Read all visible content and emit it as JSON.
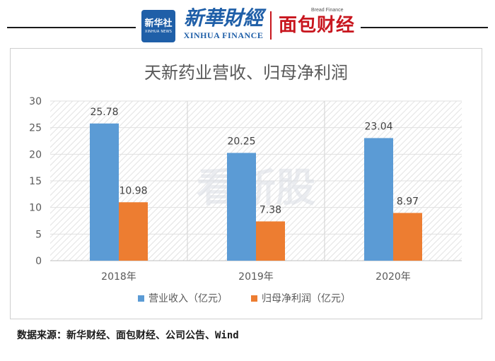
{
  "header": {
    "logo_line1": "新华社",
    "logo_line2": "XINHUA NEWS",
    "brand_cn": "新華財經",
    "brand_en": "XINHUA FINANCE",
    "bread_en": "Bread Finance",
    "bread_cn": "面包财经",
    "accent_blue": "#1f5fa8",
    "accent_red": "#c8161e"
  },
  "watermark": "看新股",
  "chart_data": {
    "type": "bar",
    "title": "天新药业营收、归母净利润",
    "categories": [
      "2018年",
      "2019年",
      "2020年"
    ],
    "series": [
      {
        "name": "营业收入（亿元）",
        "values": [
          25.78,
          20.25,
          23.04
        ],
        "color": "#5b9bd5"
      },
      {
        "name": "归母净利润（亿元）",
        "values": [
          10.98,
          7.38,
          8.97
        ],
        "color": "#ed7d31"
      }
    ],
    "ylim": [
      0,
      30
    ],
    "yticks": [
      0,
      5,
      10,
      15,
      20,
      25,
      30
    ],
    "grid": true,
    "legend": "bottom"
  },
  "source": "数据来源：新华财经、面包财经、公司公告、Wind"
}
